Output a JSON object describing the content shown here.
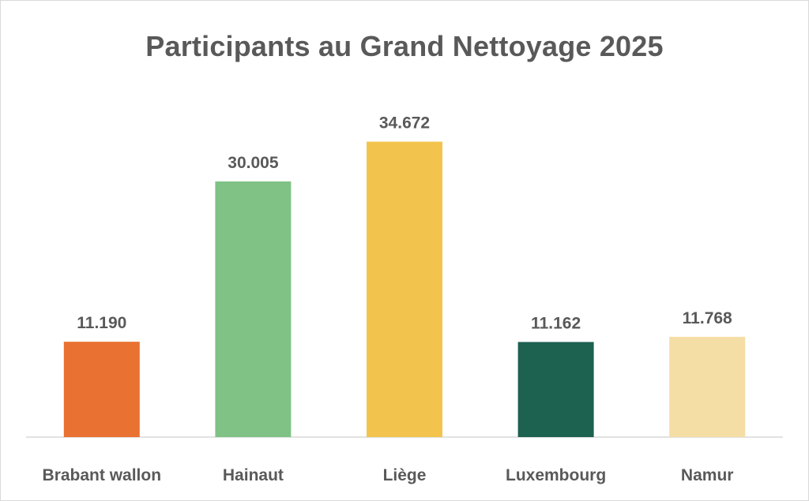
{
  "chart_data": {
    "type": "bar",
    "title": "Participants au Grand Nettoyage 2025",
    "xlabel": "",
    "ylabel": "",
    "ylim": [
      0,
      40000
    ],
    "grid": false,
    "legend": "none",
    "categories": [
      "Brabant wallon",
      "Hainaut",
      "Liège",
      "Luxembourg",
      "Namur"
    ],
    "values": [
      11190,
      30005,
      34672,
      11162,
      11768
    ],
    "value_labels": [
      "11.190",
      "30.005",
      "34.672",
      "11.162",
      "11.768"
    ],
    "colors": [
      "#E97132",
      "#80C285",
      "#F2C44E",
      "#1D6151",
      "#F5DDA6"
    ]
  }
}
